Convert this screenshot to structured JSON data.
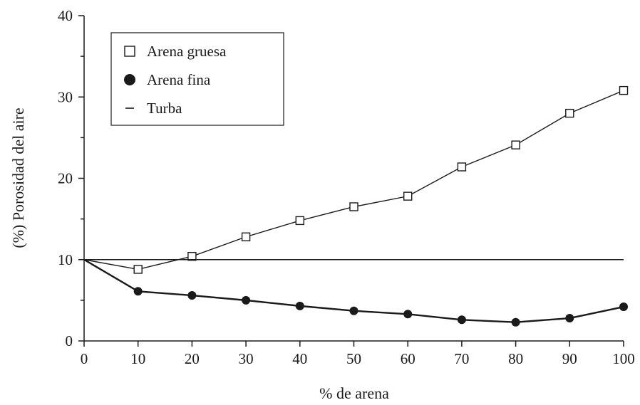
{
  "chart_data": {
    "type": "line",
    "title": "",
    "xlabel": "% de arena",
    "ylabel": "(%) Porosidad del aire",
    "x": [
      0,
      10,
      20,
      30,
      40,
      50,
      60,
      70,
      80,
      90,
      100
    ],
    "xlim": [
      0,
      100
    ],
    "ylim": [
      0,
      40
    ],
    "xticks": [
      "0",
      "10",
      "20",
      "30",
      "40",
      "50",
      "60",
      "70",
      "80",
      "90",
      "100"
    ],
    "yticks": [
      "0",
      "10",
      "20",
      "30",
      "40"
    ],
    "grid": false,
    "legend_position": "top-left",
    "series": [
      {
        "name": "Arena gruesa",
        "marker": "open-square",
        "color": "#1a1a1a",
        "values": [
          10,
          8.8,
          10.4,
          12.8,
          14.8,
          16.5,
          17.8,
          21.4,
          24.1,
          28.0,
          30.8
        ]
      },
      {
        "name": "Arena fina",
        "marker": "filled-circle",
        "color": "#1a1a1a",
        "values": [
          10,
          6.1,
          5.6,
          5.0,
          4.3,
          3.7,
          3.3,
          2.6,
          2.3,
          2.8,
          4.2
        ]
      },
      {
        "name": "Turba",
        "marker": "none",
        "color": "#1a1a1a",
        "values": [
          10,
          10,
          10,
          10,
          10,
          10,
          10,
          10,
          10,
          10,
          10
        ]
      }
    ]
  }
}
